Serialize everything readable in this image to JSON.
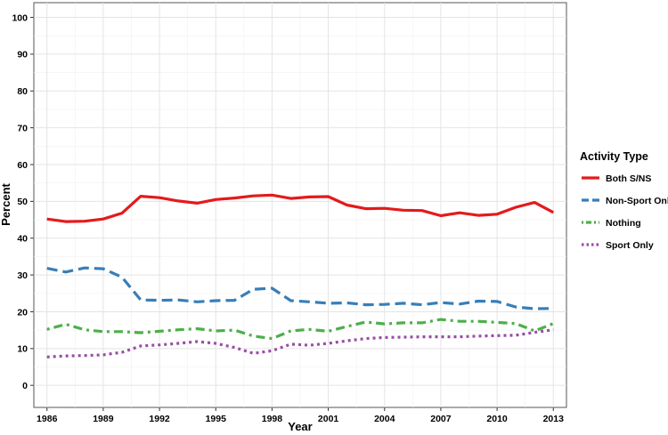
{
  "chart_data": {
    "type": "line",
    "title": "",
    "xlabel": "Year",
    "ylabel": "Percent",
    "xlim": [
      1985.3,
      2013.7
    ],
    "ylim": [
      -6,
      104
    ],
    "x_ticks": [
      1986,
      1989,
      1992,
      1995,
      1998,
      2001,
      2004,
      2007,
      2010,
      2013
    ],
    "y_ticks": [
      0,
      10,
      20,
      30,
      40,
      50,
      60,
      70,
      80,
      90,
      100
    ],
    "grid": true,
    "legend": {
      "title": "Activity Type",
      "position": "right"
    },
    "x": [
      1986,
      1987,
      1988,
      1989,
      1990,
      1991,
      1992,
      1993,
      1994,
      1995,
      1996,
      1997,
      1998,
      1999,
      2000,
      2001,
      2002,
      2003,
      2004,
      2005,
      2006,
      2007,
      2008,
      2009,
      2010,
      2011,
      2012,
      2013
    ],
    "series": [
      {
        "name": "Both S/NS",
        "color": "#e41a1c",
        "dash": "solid",
        "values": [
          45.2,
          44.5,
          44.6,
          45.2,
          46.8,
          51.4,
          51.0,
          50.1,
          49.5,
          50.5,
          50.9,
          51.5,
          51.7,
          50.8,
          51.2,
          51.3,
          49.0,
          48.0,
          48.1,
          47.6,
          47.5,
          46.1,
          46.9,
          46.2,
          46.5,
          48.4,
          49.7,
          47.0
        ]
      },
      {
        "name": "Non-Sport Only",
        "color": "#377eb8",
        "dash": "dashed",
        "values": [
          31.8,
          30.8,
          31.9,
          31.7,
          29.4,
          23.2,
          23.1,
          23.2,
          22.7,
          23.0,
          23.1,
          26.1,
          26.4,
          23.0,
          22.7,
          22.3,
          22.4,
          21.9,
          22.0,
          22.3,
          21.9,
          22.5,
          22.1,
          22.9,
          22.8,
          21.3,
          20.8,
          20.9
        ]
      },
      {
        "name": "Nothing",
        "color": "#4daf4a",
        "dash": "dotdash",
        "values": [
          15.2,
          16.6,
          15.1,
          14.6,
          14.6,
          14.3,
          14.7,
          15.1,
          15.4,
          14.8,
          15.0,
          13.4,
          12.7,
          14.8,
          15.2,
          14.7,
          16.0,
          17.2,
          16.7,
          17.0,
          17.0,
          17.9,
          17.4,
          17.4,
          17.1,
          16.8,
          14.8,
          16.8
        ]
      },
      {
        "name": "Sport Only",
        "color": "#984ea3",
        "dash": "dotted",
        "values": [
          7.7,
          8.0,
          8.1,
          8.3,
          9.0,
          10.7,
          11.0,
          11.4,
          11.9,
          11.4,
          10.3,
          8.7,
          9.4,
          11.2,
          10.9,
          11.4,
          12.1,
          12.7,
          13.0,
          13.1,
          13.2,
          13.2,
          13.2,
          13.4,
          13.5,
          13.6,
          14.4,
          15.1
        ]
      }
    ]
  }
}
